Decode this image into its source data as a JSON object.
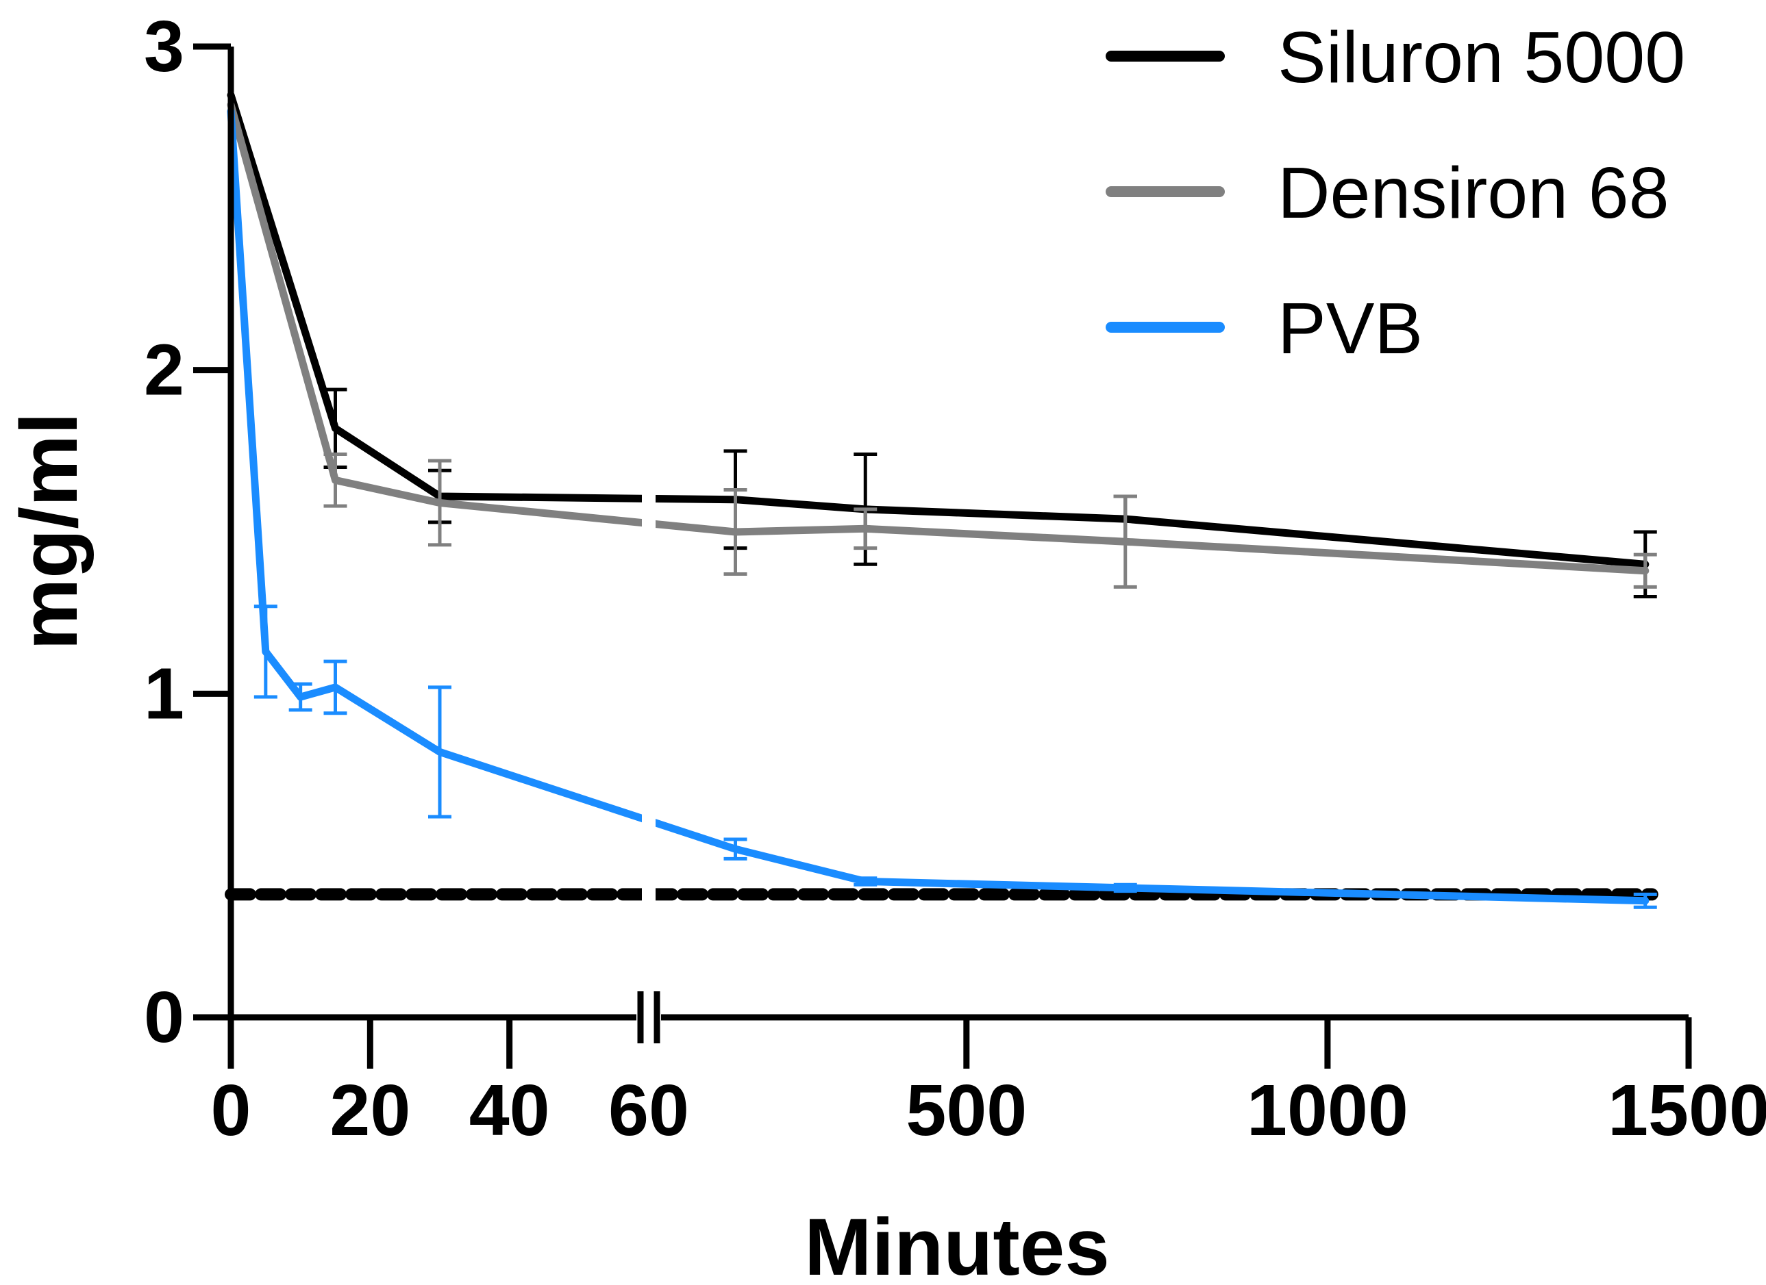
{
  "chart_data": {
    "type": "line",
    "title": "",
    "xlabel": "Minutes",
    "ylabel": "mg/ml",
    "ylim": [
      0,
      3
    ],
    "yticks": [
      0,
      1,
      2,
      3
    ],
    "x_segments": [
      {
        "range": [
          0,
          60
        ],
        "ticks": [
          0,
          20,
          40,
          60
        ]
      },
      {
        "range": [
          60,
          1500
        ],
        "ticks": [
          500,
          1000,
          1500
        ]
      }
    ],
    "axis_break_at": 60,
    "legend_position": "top-right",
    "grid": false,
    "series": [
      {
        "name": "Siluron 5000",
        "color": "#000000",
        "points": [
          {
            "x": 0,
            "y": 2.85,
            "err": 0
          },
          {
            "x": 15,
            "y": 1.82,
            "err": 0.12
          },
          {
            "x": 30,
            "y": 1.61,
            "err": 0.08
          },
          {
            "x": 180,
            "y": 1.6,
            "err": 0.15
          },
          {
            "x": 360,
            "y": 1.57,
            "err": 0.17
          },
          {
            "x": 720,
            "y": 1.54,
            "err": 0.07
          },
          {
            "x": 1440,
            "y": 1.4,
            "err": 0.1
          }
        ]
      },
      {
        "name": "Densiron 68",
        "color": "#808080",
        "points": [
          {
            "x": 0,
            "y": 2.82,
            "err": 0
          },
          {
            "x": 15,
            "y": 1.66,
            "err": 0.08
          },
          {
            "x": 30,
            "y": 1.59,
            "err": 0.13
          },
          {
            "x": 180,
            "y": 1.5,
            "err": 0.13
          },
          {
            "x": 360,
            "y": 1.51,
            "err": 0.06
          },
          {
            "x": 720,
            "y": 1.47,
            "err": 0.14
          },
          {
            "x": 1440,
            "y": 1.38,
            "err": 0.05
          }
        ]
      },
      {
        "name": "PVB",
        "color": "#1a8cff",
        "points": [
          {
            "x": 0,
            "y": 2.8,
            "err": 0
          },
          {
            "x": 5,
            "y": 1.13,
            "err": 0.14
          },
          {
            "x": 10,
            "y": 0.99,
            "err": 0.04
          },
          {
            "x": 15,
            "y": 1.02,
            "err": 0.08
          },
          {
            "x": 30,
            "y": 0.82,
            "err": 0.2
          },
          {
            "x": 180,
            "y": 0.52,
            "err": 0.03
          },
          {
            "x": 360,
            "y": 0.42,
            "err": 0.01
          },
          {
            "x": 720,
            "y": 0.4,
            "err": 0.01
          },
          {
            "x": 1440,
            "y": 0.36,
            "err": 0.02
          }
        ]
      }
    ],
    "reference_line": {
      "y": 0.38,
      "style": "dotted",
      "color": "#000000"
    }
  }
}
